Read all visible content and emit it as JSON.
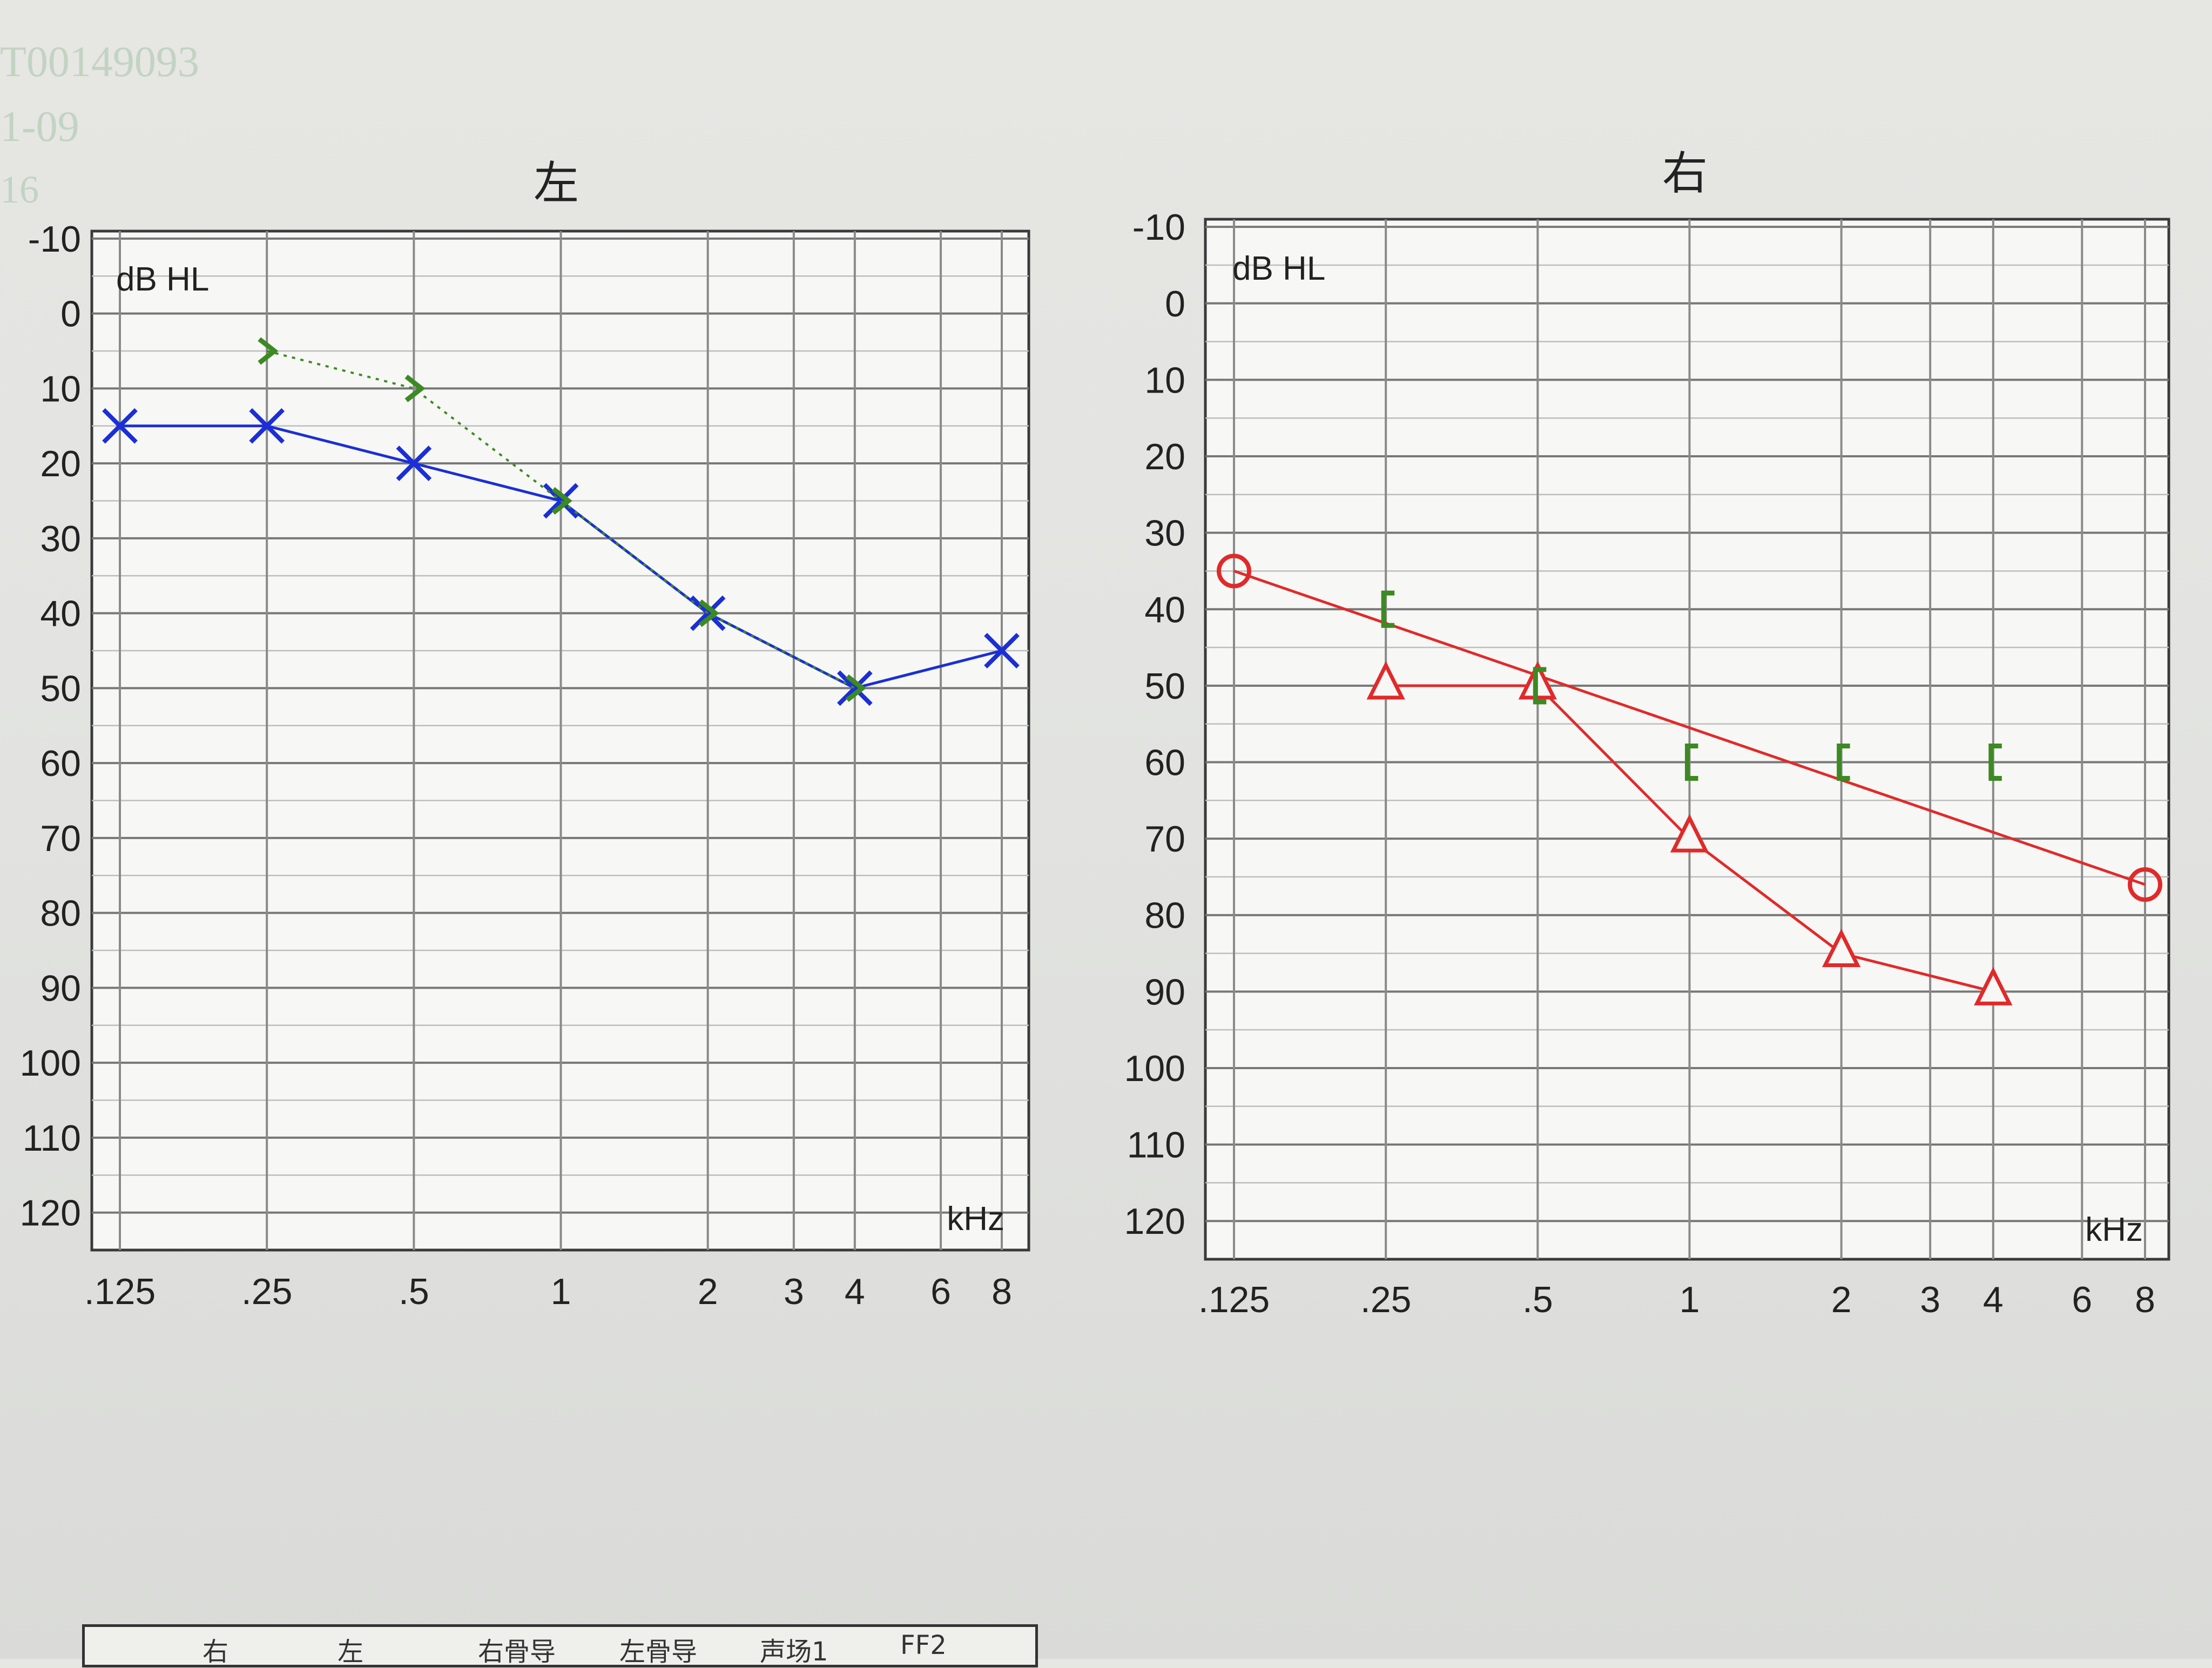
{
  "header_faint": [
    "T00149093",
    "1-09",
    "16"
  ],
  "chart_data": [
    {
      "type": "scatter",
      "title": "左",
      "unit_label": "dB HL",
      "xunit": "kHz",
      "x_ticks": [
        ".125",
        ".25",
        ".5",
        "1",
        "2",
        "3",
        "4",
        "6",
        "8"
      ],
      "y_ticks": [
        -10,
        0,
        10,
        20,
        30,
        40,
        50,
        60,
        70,
        80,
        90,
        100,
        110,
        120
      ],
      "ylim": [
        -10,
        120
      ],
      "y_inverted": true,
      "x_scale": "log",
      "grid": true,
      "series": [
        {
          "symbol": "X",
          "color": "#1a2fd6",
          "line": "solid",
          "points": [
            {
              "x": 0.125,
              "y": 15
            },
            {
              "x": 0.25,
              "y": 15
            },
            {
              "x": 0.5,
              "y": 20
            },
            {
              "x": 1,
              "y": 25
            },
            {
              "x": 2,
              "y": 40
            },
            {
              "x": 4,
              "y": 50
            },
            {
              "x": 8,
              "y": 45
            }
          ]
        },
        {
          "symbol": ">",
          "color": "#3c8a22",
          "line": "dotted",
          "points": [
            {
              "x": 0.25,
              "y": 5
            },
            {
              "x": 0.5,
              "y": 10
            },
            {
              "x": 1,
              "y": 25
            },
            {
              "x": 2,
              "y": 40
            },
            {
              "x": 4,
              "y": 50
            }
          ]
        }
      ]
    },
    {
      "type": "scatter",
      "title": "右",
      "unit_label": "dB HL",
      "xunit": "kHz",
      "x_ticks": [
        ".125",
        ".25",
        ".5",
        "1",
        "2",
        "3",
        "4",
        "6",
        "8"
      ],
      "y_ticks": [
        -10,
        0,
        10,
        20,
        30,
        40,
        50,
        60,
        70,
        80,
        90,
        100,
        110,
        120
      ],
      "ylim": [
        -10,
        120
      ],
      "y_inverted": true,
      "x_scale": "log",
      "grid": true,
      "series": [
        {
          "symbol": "O",
          "color": "#e02a2a",
          "line": "solid",
          "points": [
            {
              "x": 0.125,
              "y": 35
            },
            {
              "x": 8,
              "y": 76
            }
          ]
        },
        {
          "symbol": "triangle",
          "color": "#e02a2a",
          "line": "solid",
          "points": [
            {
              "x": 0.25,
              "y": 50
            },
            {
              "x": 0.5,
              "y": 50
            },
            {
              "x": 1,
              "y": 70
            },
            {
              "x": 2,
              "y": 85
            },
            {
              "x": 4,
              "y": 90
            }
          ]
        },
        {
          "symbol": "[",
          "color": "#3c8a22",
          "line": "none",
          "points": [
            {
              "x": 0.25,
              "y": 40
            },
            {
              "x": 0.5,
              "y": 50
            },
            {
              "x": 1,
              "y": 60
            },
            {
              "x": 2,
              "y": 60
            },
            {
              "x": 4,
              "y": 60
            }
          ]
        }
      ]
    }
  ],
  "bottom_table": {
    "headers": [
      "右",
      "左",
      "右骨导",
      "左骨导",
      "声场1",
      "FF2"
    ]
  }
}
